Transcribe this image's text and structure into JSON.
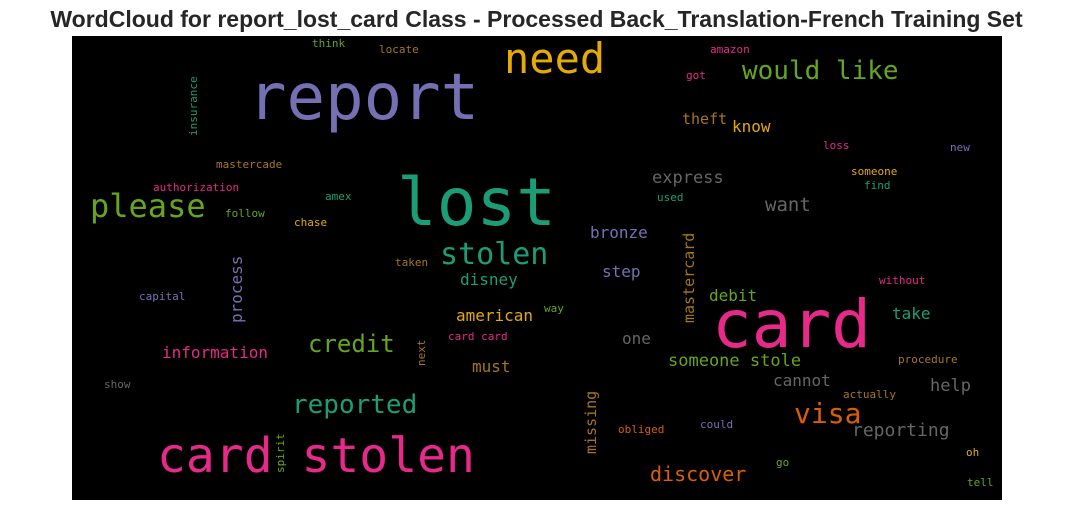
{
  "title": "WordCloud for report_lost_card Class - Processed Back_Translation-French Training Set",
  "words": [
    {
      "text": "report",
      "color": "#7570b3"
    },
    {
      "text": "lost",
      "color": "#1b9e77"
    },
    {
      "text": "card",
      "color": "#e7298a"
    },
    {
      "text": "card stolen",
      "color": "#e7298a"
    },
    {
      "text": "need",
      "color": "#e6ab02"
    },
    {
      "text": "would like",
      "color": "#66a61e"
    },
    {
      "text": "please",
      "color": "#66a61e"
    },
    {
      "text": "stolen",
      "color": "#1b9e77"
    },
    {
      "text": "reported",
      "color": "#1b9e77"
    },
    {
      "text": "visa",
      "color": "#d95f02"
    },
    {
      "text": "credit",
      "color": "#66a61e"
    },
    {
      "text": "discover",
      "color": "#d95f02"
    },
    {
      "text": "information",
      "color": "#e7298a"
    },
    {
      "text": "someone stole",
      "color": "#66a61e"
    },
    {
      "text": "reporting",
      "color": "#666666"
    },
    {
      "text": "want",
      "color": "#666666"
    },
    {
      "text": "express",
      "color": "#666666"
    },
    {
      "text": "bronze",
      "color": "#7570b3"
    },
    {
      "text": "american",
      "color": "#e6ab02"
    },
    {
      "text": "disney",
      "color": "#1b9e77"
    },
    {
      "text": "step",
      "color": "#7570b3"
    },
    {
      "text": "debit",
      "color": "#66a61e"
    },
    {
      "text": "take",
      "color": "#1b9e77"
    },
    {
      "text": "help",
      "color": "#666666"
    },
    {
      "text": "cannot",
      "color": "#666666"
    },
    {
      "text": "one",
      "color": "#666666"
    },
    {
      "text": "must",
      "color": "#a6761d"
    },
    {
      "text": "theft",
      "color": "#a6761d"
    },
    {
      "text": "know",
      "color": "#e6ab02"
    },
    {
      "text": "mastercard",
      "color": "#a6761d"
    },
    {
      "text": "process",
      "color": "#7570b3"
    },
    {
      "text": "missing",
      "color": "#a6761d"
    },
    {
      "text": "think",
      "color": "#66a61e"
    },
    {
      "text": "locate",
      "color": "#a6761d"
    },
    {
      "text": "amazon",
      "color": "#e7298a"
    },
    {
      "text": "got",
      "color": "#e7298a"
    },
    {
      "text": "insurance",
      "color": "#1b9e77"
    },
    {
      "text": "mastercade",
      "color": "#a6761d"
    },
    {
      "text": "authorization",
      "color": "#e7298a"
    },
    {
      "text": "follow",
      "color": "#66a61e"
    },
    {
      "text": "amex",
      "color": "#1b9e77"
    },
    {
      "text": "chase",
      "color": "#e6ab02"
    },
    {
      "text": "taken",
      "color": "#a6761d"
    },
    {
      "text": "capital",
      "color": "#7570b3"
    },
    {
      "text": "loss",
      "color": "#e7298a"
    },
    {
      "text": "new",
      "color": "#7570b3"
    },
    {
      "text": "someone",
      "color": "#e6ab02"
    },
    {
      "text": "find",
      "color": "#1b9e77"
    },
    {
      "text": "used",
      "color": "#1b9e77"
    },
    {
      "text": "without",
      "color": "#e7298a"
    },
    {
      "text": "way",
      "color": "#66a61e"
    },
    {
      "text": "card card",
      "color": "#e7298a"
    },
    {
      "text": "next",
      "color": "#a6761d"
    },
    {
      "text": "procedure",
      "color": "#a6761d"
    },
    {
      "text": "actually",
      "color": "#a6761d"
    },
    {
      "text": "show",
      "color": "#666666"
    },
    {
      "text": "spirit",
      "color": "#66a61e"
    },
    {
      "text": "obliged",
      "color": "#d95f02"
    },
    {
      "text": "could",
      "color": "#7570b3"
    },
    {
      "text": "go",
      "color": "#66a61e"
    },
    {
      "text": "oh",
      "color": "#e6ab02"
    },
    {
      "text": "tell",
      "color": "#66a61e"
    }
  ]
}
